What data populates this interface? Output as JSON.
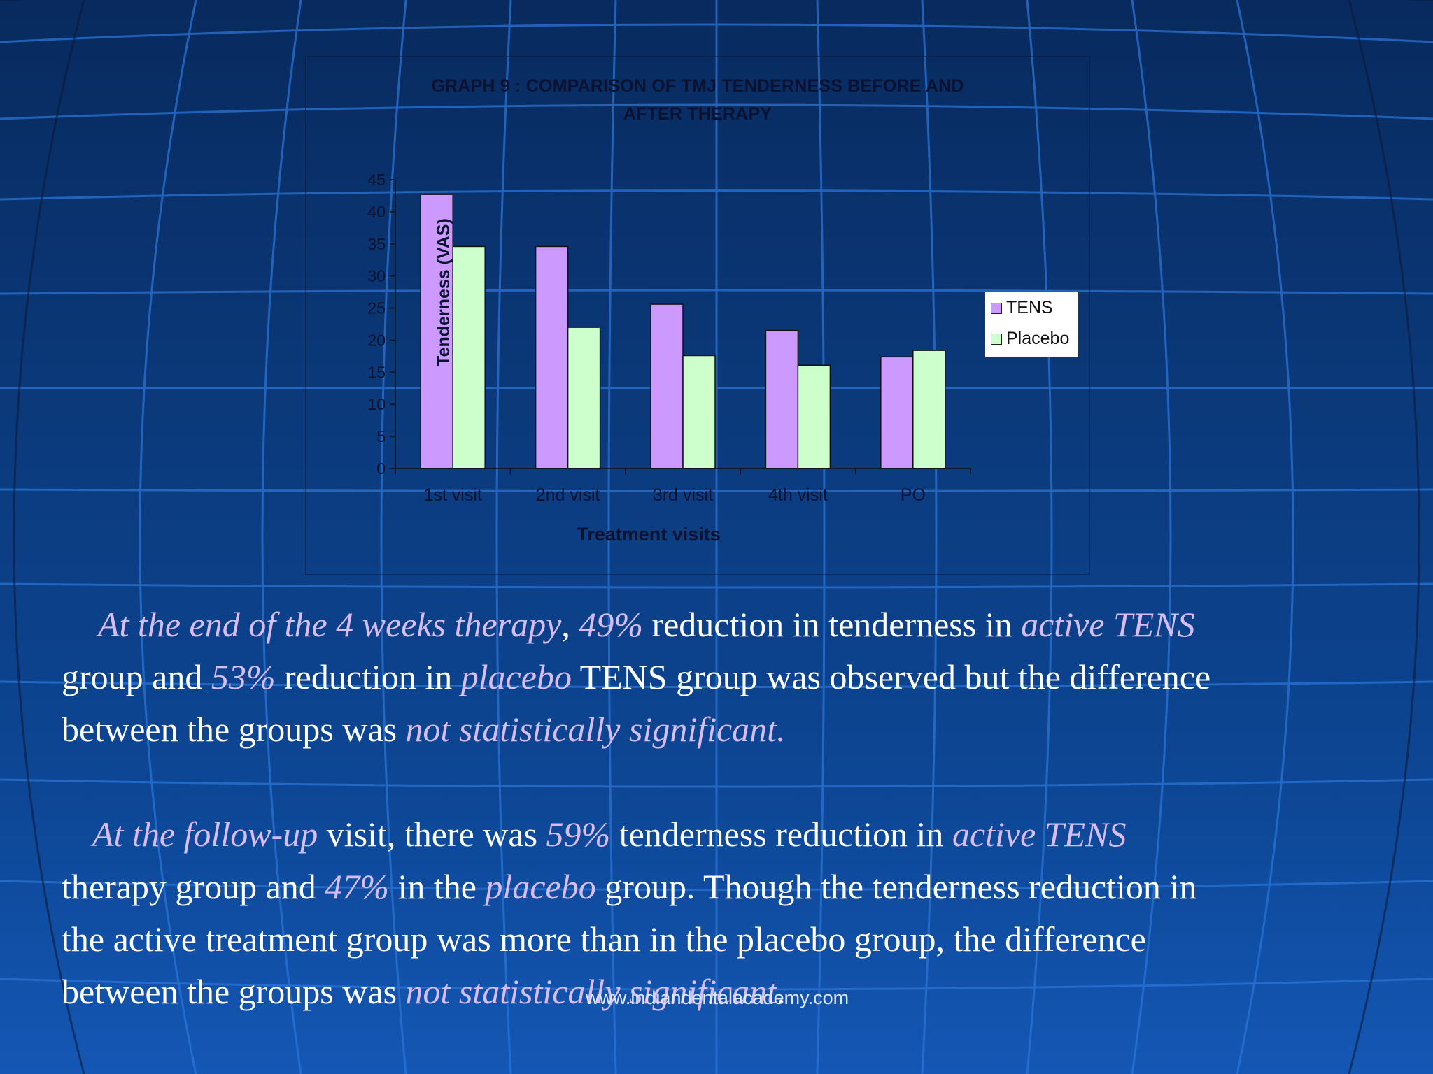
{
  "chart_data": {
    "type": "bar",
    "title_lines": [
      "GRAPH 9 : COMPARISON OF TMJ TENDERNESS BEFORE AND",
      "AFTER THERAPY"
    ],
    "xlabel": "Treatment visits",
    "ylabel": "Tenderness (VAS)",
    "categories": [
      "1st visit",
      "2nd visit",
      "3rd visit",
      "4th visit",
      "PO"
    ],
    "series": [
      {
        "name": "TENS",
        "color": "#cc99ff",
        "values": [
          42.7,
          34.6,
          25.6,
          21.5,
          17.4
        ]
      },
      {
        "name": "Placebo",
        "color": "#ccffcc",
        "values": [
          34.6,
          22.0,
          17.6,
          16.1,
          18.4
        ]
      }
    ],
    "ylim": [
      0,
      45
    ],
    "yticks": [
      0,
      5,
      10,
      15,
      20,
      25,
      30,
      35,
      40,
      45
    ],
    "grid": false,
    "legend_position": "right"
  },
  "text": {
    "p1_line1": [
      {
        "t": "At the end of the 4 weeks therapy",
        "i": true
      },
      {
        "t": ", ",
        "i": false
      },
      {
        "t": "49%",
        "i": true
      },
      {
        "t": " reduction in tenderness in ",
        "i": false
      },
      {
        "t": "active TENS",
        "i": true
      }
    ],
    "p1_line2": [
      {
        "t": "group and ",
        "i": false
      },
      {
        "t": "53%",
        "i": true
      },
      {
        "t": " reduction in ",
        "i": false
      },
      {
        "t": "placebo",
        "i": true
      },
      {
        "t": " TENS group was observed but the difference",
        "i": false
      }
    ],
    "p1_line3": [
      {
        "t": "between the groups was ",
        "i": false
      },
      {
        "t": "not statistically significant.",
        "i": true
      }
    ],
    "p2_line1": [
      {
        "t": "At the follow-up",
        "i": true
      },
      {
        "t": " visit, there was ",
        "i": false
      },
      {
        "t": "59%",
        "i": true
      },
      {
        "t": " tenderness reduction in ",
        "i": false
      },
      {
        "t": "active TENS",
        "i": true
      }
    ],
    "p2_line2": [
      {
        "t": "therapy group and ",
        "i": false
      },
      {
        "t": "47%",
        "i": true
      },
      {
        "t": " in the ",
        "i": false
      },
      {
        "t": "placebo",
        "i": true
      },
      {
        "t": " group. Though the tenderness reduction in",
        "i": false
      }
    ],
    "p2_line3": [
      {
        "t": "the active treatment group was more than in the placebo group, the difference",
        "i": false
      }
    ],
    "p2_line4": [
      {
        "t": "between the groups was ",
        "i": false
      },
      {
        "t": "not statistically significant",
        "i": true
      },
      {
        "t": ".",
        "i": false
      }
    ]
  },
  "watermark": "www.indiandentalacademy.com"
}
